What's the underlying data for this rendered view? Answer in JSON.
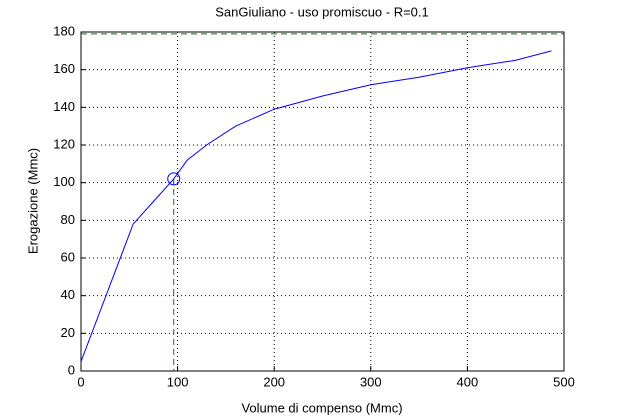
{
  "chart_data": {
    "type": "line",
    "title": "SanGiuliano  -  uso promiscuo  -   R=0.1",
    "xlabel": "Volume di compenso (Mmc)",
    "ylabel": "Erogazione (Mmc)",
    "series": [
      {
        "color": "#0000ff",
        "x": [
          0,
          54,
          75,
          96,
          110,
          130,
          160,
          200,
          250,
          300,
          350,
          400,
          450,
          487
        ],
        "values": [
          5,
          78,
          90,
          102,
          112,
          120,
          130,
          139,
          146,
          152,
          156,
          161,
          165,
          170
        ]
      }
    ],
    "marker": {
      "x": 96,
      "y": 102,
      "color": "#0000ff"
    },
    "reference_y": 179,
    "reference_color": "#008000",
    "xlim": [
      0,
      500
    ],
    "xticks": [
      0,
      100,
      200,
      300,
      400,
      500
    ],
    "ylim": [
      0,
      180
    ],
    "yticks": [
      0,
      20,
      40,
      60,
      80,
      100,
      120,
      140,
      160,
      180
    ],
    "grid": true
  }
}
